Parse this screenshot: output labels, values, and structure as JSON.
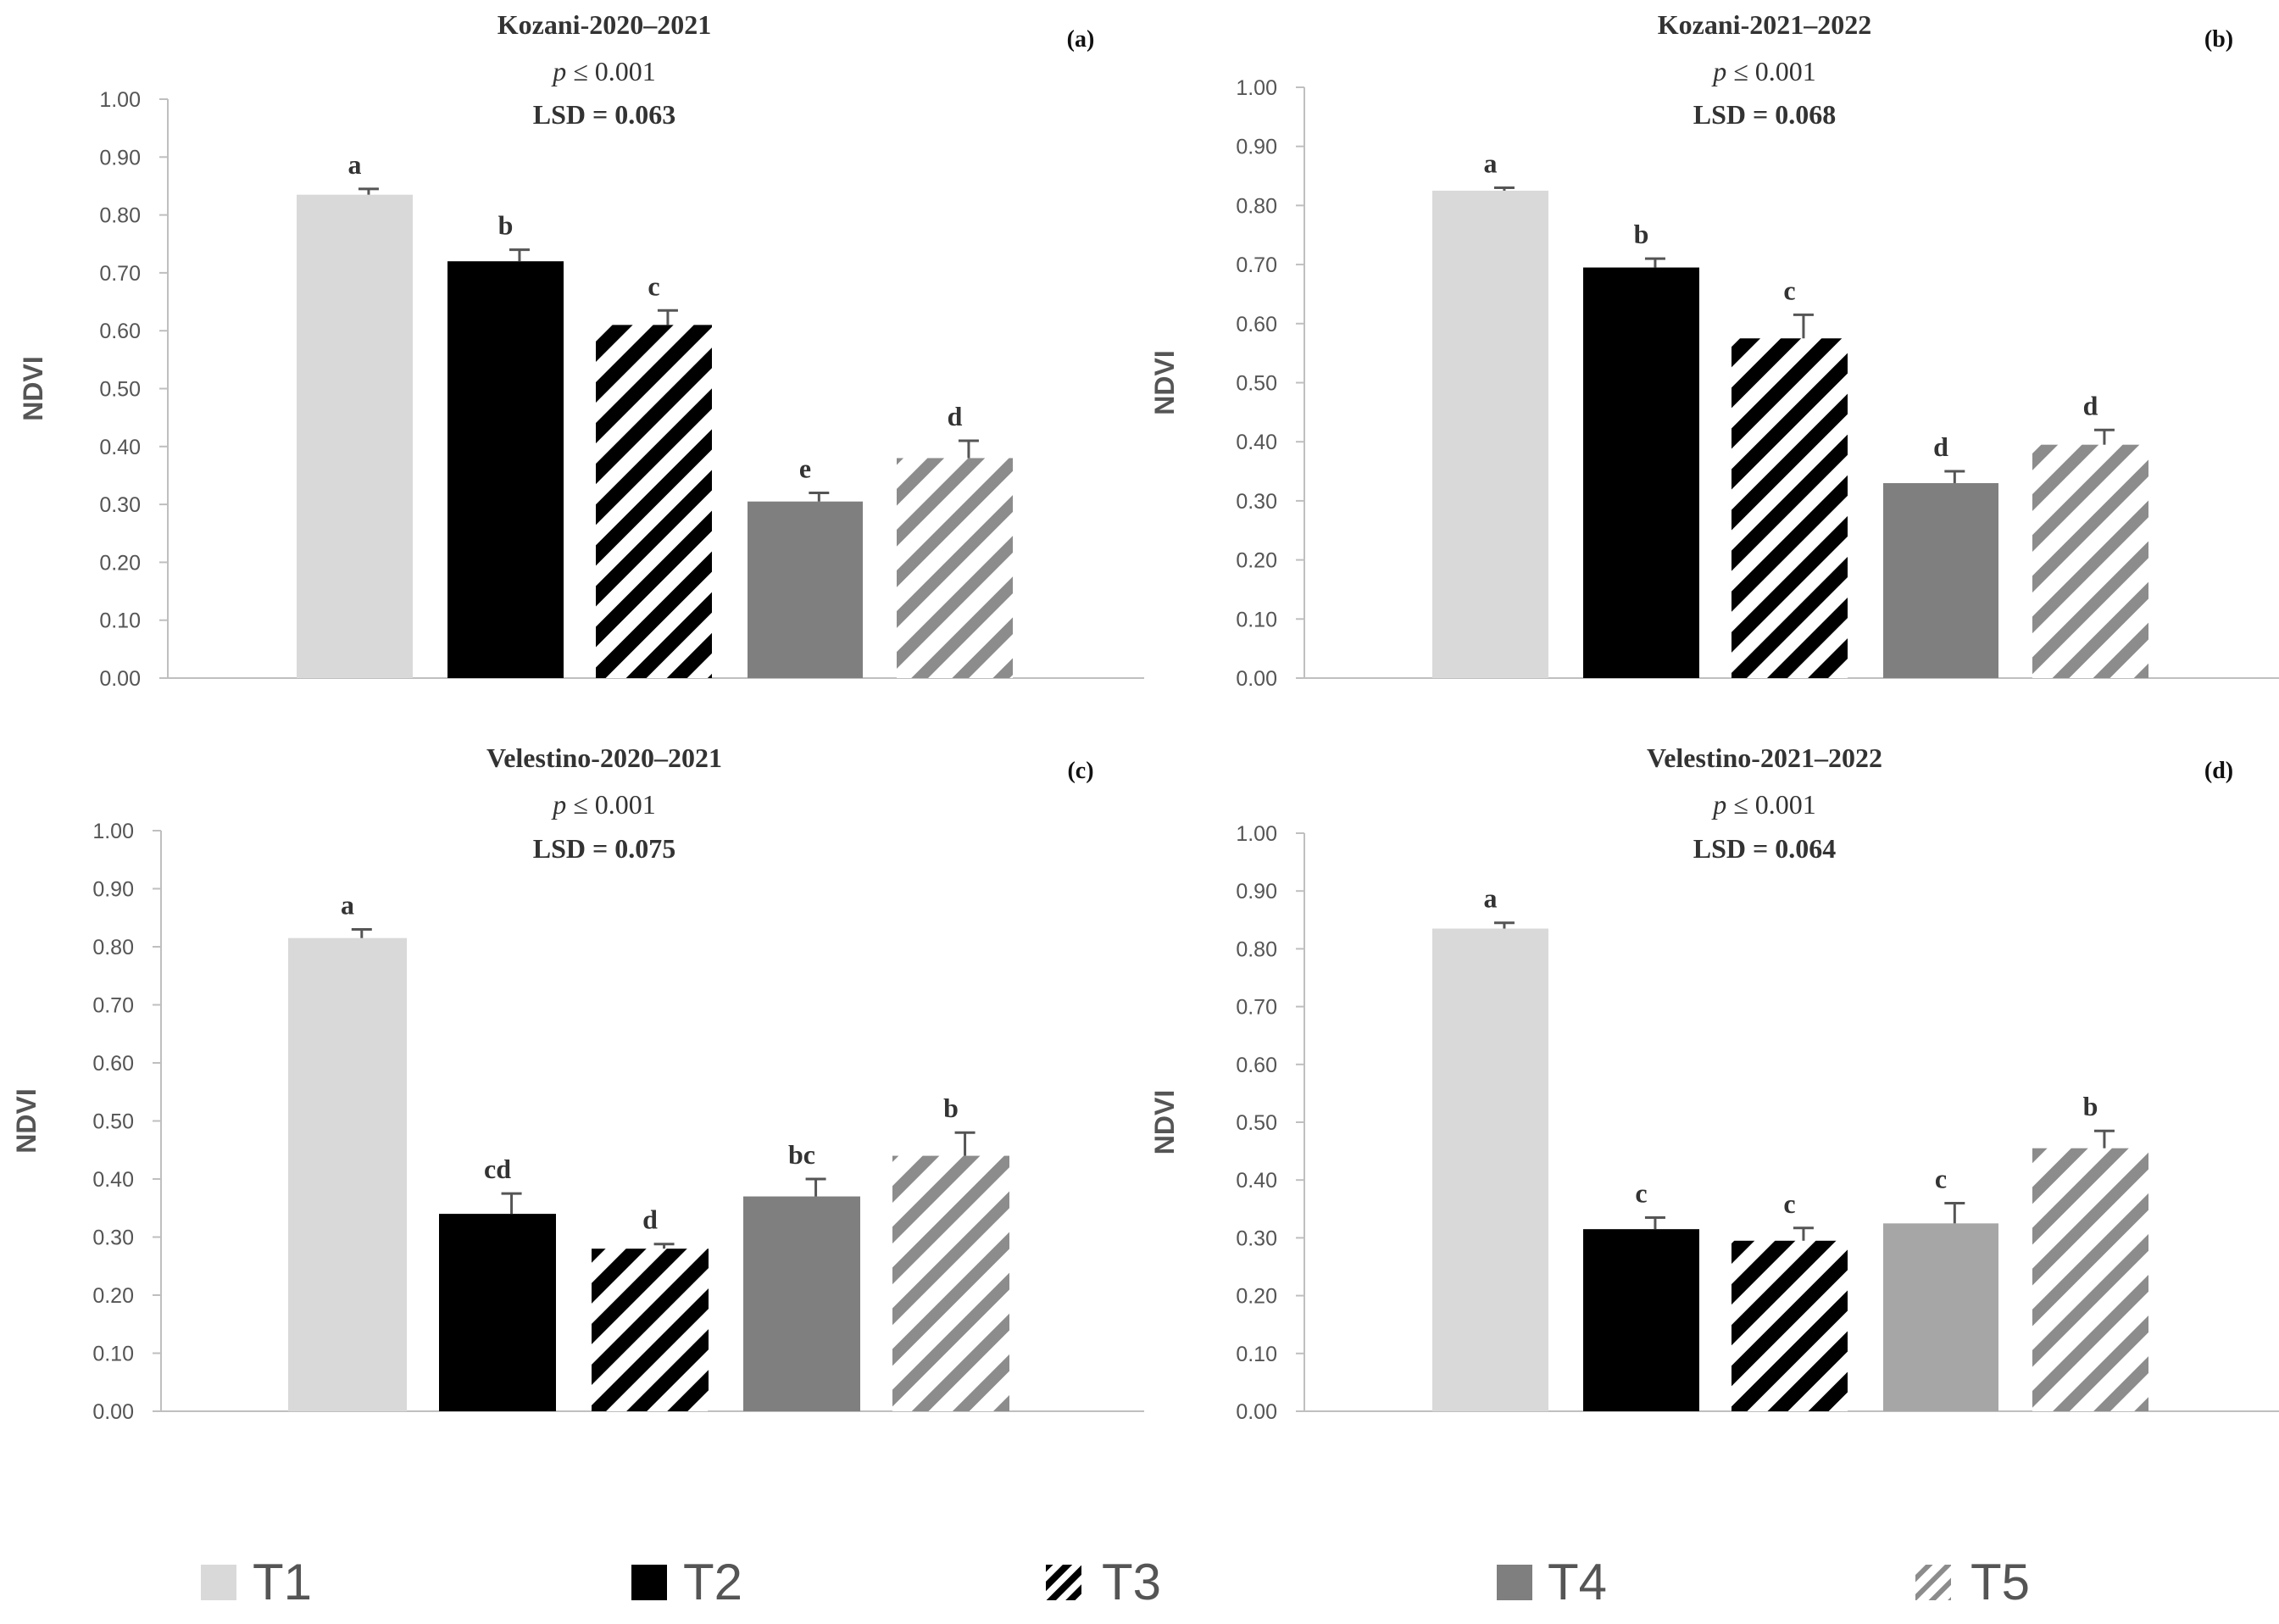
{
  "figure": {
    "ylabel": "NDVI",
    "yticks": [
      "0.00",
      "0.10",
      "0.20",
      "0.30",
      "0.40",
      "0.50",
      "0.60",
      "0.70",
      "0.80",
      "0.90",
      "1.00"
    ],
    "legend": [
      {
        "label": "T1",
        "pattern": "light"
      },
      {
        "label": "T2",
        "pattern": "black"
      },
      {
        "label": "T3",
        "pattern": "stripe-black"
      },
      {
        "label": "T4",
        "pattern": "dark-gray"
      },
      {
        "label": "T5",
        "pattern": "stripe-gray"
      }
    ]
  },
  "colors": {
    "T1": "#d9d9d9",
    "T2": "#000000",
    "T4": "#7f7f7f",
    "T4_velestino_2021": "#a6a6a6",
    "stripe_black": "#000000",
    "stripe_gray": "#8c8c8c",
    "axis": "#bfbfbf"
  },
  "chart_data": [
    {
      "type": "bar",
      "title": "Kozani-2020–2021",
      "p_prefix": "p",
      "p_value": " ≤ 0.001",
      "lsd": "LSD = 0.063",
      "panel": "(a)",
      "ylabel": "NDVI",
      "ylim": [
        0,
        1
      ],
      "categories": [
        "T1",
        "T2",
        "T3",
        "T4",
        "T5"
      ],
      "values": [
        0.835,
        0.72,
        0.61,
        0.305,
        0.38
      ],
      "errors": [
        0.01,
        0.02,
        0.025,
        0.015,
        0.03
      ],
      "letters": [
        "a",
        "b",
        "c",
        "e",
        "d"
      ]
    },
    {
      "type": "bar",
      "title": "Kozani-2021–2022",
      "p_prefix": "p",
      "p_value": " ≤ 0.001",
      "lsd": "LSD = 0.068",
      "panel": "(b)",
      "ylabel": "NDVI",
      "ylim": [
        0,
        1
      ],
      "categories": [
        "T1",
        "T2",
        "T3",
        "T4",
        "T5"
      ],
      "values": [
        0.825,
        0.695,
        0.575,
        0.33,
        0.395
      ],
      "errors": [
        0.005,
        0.015,
        0.04,
        0.02,
        0.025
      ],
      "letters": [
        "a",
        "b",
        "c",
        "d",
        "d"
      ]
    },
    {
      "type": "bar",
      "title": "Velestino-2020–2021",
      "p_prefix": "p",
      "p_value": " ≤ 0.001",
      "lsd": "LSD = 0.075",
      "panel": "(c)",
      "ylabel": "NDVI",
      "ylim": [
        0,
        1
      ],
      "categories": [
        "T1",
        "T2",
        "T3",
        "T4",
        "T5"
      ],
      "values": [
        0.815,
        0.34,
        0.28,
        0.37,
        0.44
      ],
      "errors": [
        0.015,
        0.035,
        0.008,
        0.03,
        0.04
      ],
      "letters": [
        "a",
        "cd",
        "d",
        "bc",
        "b"
      ]
    },
    {
      "type": "bar",
      "title": "Velestino-2021–2022",
      "p_prefix": "p",
      "p_value": " ≤ 0.001",
      "lsd": "LSD = 0.064",
      "panel": "(d)",
      "ylabel": "NDVI",
      "ylim": [
        0,
        1
      ],
      "categories": [
        "T1",
        "T2",
        "T3",
        "T4",
        "T5"
      ],
      "values": [
        0.835,
        0.315,
        0.295,
        0.325,
        0.455
      ],
      "errors": [
        0.01,
        0.02,
        0.022,
        0.035,
        0.03
      ],
      "letters": [
        "a",
        "c",
        "c",
        "c",
        "b"
      ]
    }
  ]
}
